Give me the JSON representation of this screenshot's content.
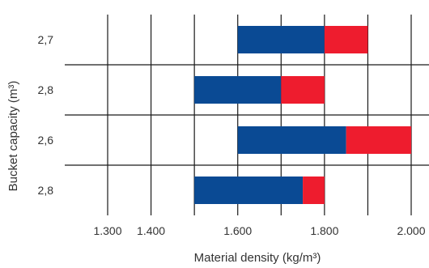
{
  "chart_data": {
    "type": "bar",
    "orientation": "horizontal",
    "stacked": true,
    "xlabel": "Material density (kg/m³)",
    "ylabel": "Bucket capacity (m³)",
    "x_ticks": [
      "1.300",
      "1.400",
      "1.500",
      "1.600",
      "1.700",
      "1.800",
      "1.900",
      "2.000"
    ],
    "x_tick_values": [
      1300,
      1400,
      1500,
      1600,
      1700,
      1800,
      1900,
      2000
    ],
    "x_tick_labels_shown": [
      "1.300",
      "1.400",
      "1.600",
      "1.800",
      "2.000"
    ],
    "xlim": [
      1225,
      2050
    ],
    "grid": true,
    "categories": [
      "2,7",
      "2,8",
      "2,6",
      "2,8"
    ],
    "series": [
      {
        "color": "#0a4a94",
        "ranges": [
          [
            1600,
            1800
          ],
          [
            1500,
            1700
          ],
          [
            1600,
            1850
          ],
          [
            1500,
            1750
          ]
        ]
      },
      {
        "color": "#ee1c2e",
        "ranges": [
          [
            1800,
            1900
          ],
          [
            1700,
            1800
          ],
          [
            1850,
            2000
          ],
          [
            1750,
            1800
          ]
        ]
      }
    ]
  }
}
